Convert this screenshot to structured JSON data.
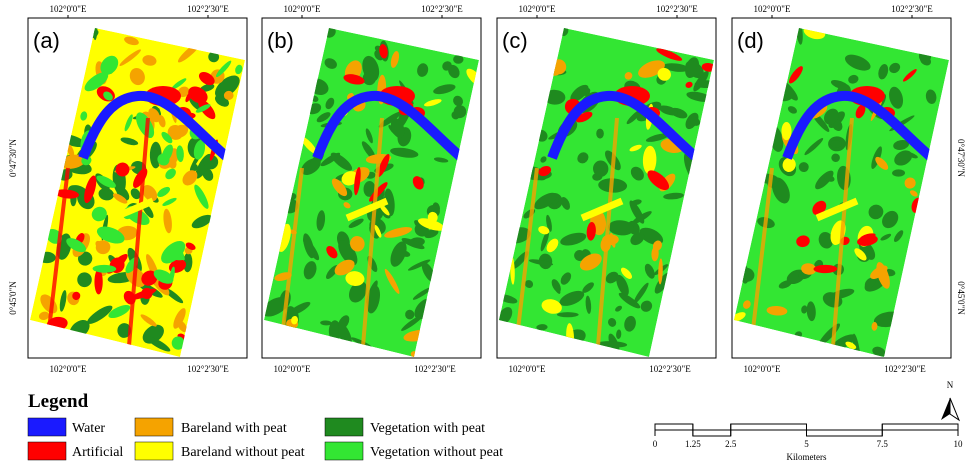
{
  "panels": [
    {
      "label": "(a)"
    },
    {
      "label": "(b)"
    },
    {
      "label": "(c)"
    },
    {
      "label": "(d)"
    }
  ],
  "graticule": {
    "lon": [
      "102°0'0\"E",
      "102°2'30\"E"
    ],
    "lat": [
      "0°47'30\"N",
      "0°45'0\"N"
    ]
  },
  "legend": {
    "title": "Legend",
    "items": [
      {
        "label": "Water",
        "color": "#1a1aff"
      },
      {
        "label": "Artificial",
        "color": "#ff0000"
      },
      {
        "label": "Bareland with peat",
        "color": "#f5a300"
      },
      {
        "label": "Bareland without peat",
        "color": "#ffff00"
      },
      {
        "label": "Vegetation with peat",
        "color": "#1f8a1f"
      },
      {
        "label": "Vegetation without peat",
        "color": "#33e633"
      }
    ]
  },
  "scale_bar": {
    "ticks": [
      0,
      1.25,
      2.5,
      5,
      7.5,
      10
    ],
    "unit": "Kilometers"
  },
  "north_label": "N"
}
